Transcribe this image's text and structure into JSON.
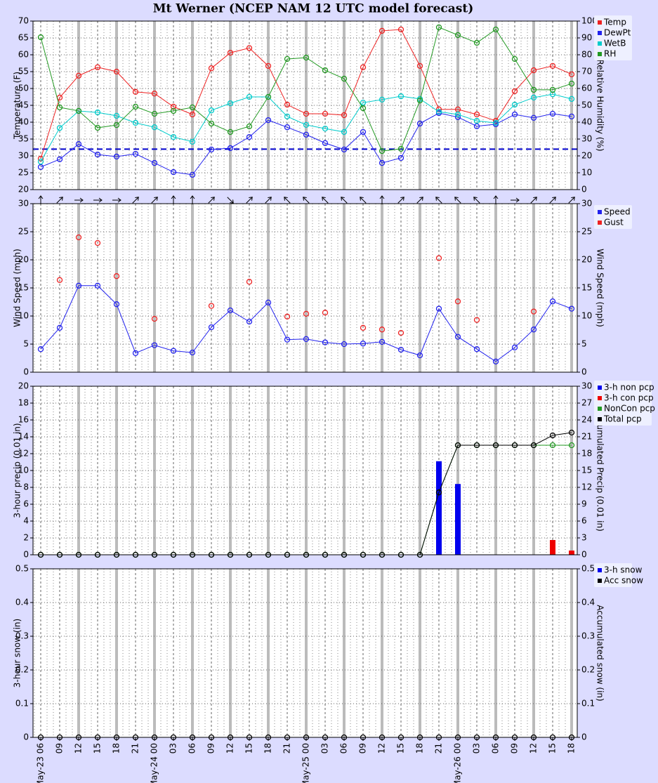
{
  "title": "Mt Werner (NCEP NAM 12 UTC model forecast)",
  "chart_data": [
    {
      "type": "combo",
      "ylabel": "Temperature (F)",
      "y2label": "Relative Humidity (%)",
      "ylim": [
        20,
        70
      ],
      "yticks": [
        20,
        25,
        30,
        35,
        40,
        45,
        50,
        55,
        60,
        65,
        70
      ],
      "y2lim": [
        0,
        100
      ],
      "y2ticks": [
        0,
        10,
        20,
        30,
        40,
        50,
        60,
        70,
        80,
        90,
        100
      ],
      "grid": true,
      "freezing_line": 32,
      "freezing_color": "#0000cc",
      "series": [
        {
          "name": "Temp",
          "color": "#ee2222",
          "kind": "line",
          "values": [
            29.2,
            47.3,
            53.8,
            56.3,
            55,
            49,
            48.5,
            44.6,
            42.3,
            56,
            60.6,
            62,
            56.7,
            45.2,
            42.5,
            42.5,
            42.1,
            56.3,
            67.1,
            67.5,
            56.7,
            43.8,
            43.8,
            42.3,
            40.4,
            49.2,
            55.4,
            56.7,
            54.2
          ]
        },
        {
          "name": "DewPt",
          "color": "#2222ee",
          "kind": "line",
          "values": [
            26.7,
            29,
            33.5,
            30.4,
            29.8,
            30.6,
            27.9,
            25.2,
            24.4,
            31.9,
            32.3,
            35.6,
            40.6,
            38.5,
            36.3,
            33.8,
            31.9,
            37.1,
            27.9,
            29.4,
            39.6,
            42.7,
            41.5,
            38.8,
            39.4,
            42.3,
            41.3,
            42.5,
            41.7
          ]
        },
        {
          "name": "WetB",
          "color": "#00cccc",
          "kind": "line",
          "values": [
            28.3,
            38.3,
            43.3,
            42.9,
            41.9,
            39.8,
            38.5,
            35.6,
            34.2,
            43.5,
            45.6,
            47.5,
            47.5,
            41.7,
            39.2,
            38.1,
            37.1,
            45.8,
            46.7,
            47.7,
            46.9,
            43.1,
            42.3,
            40.4,
            39.8,
            45.2,
            47.3,
            48.3,
            46.9
          ]
        },
        {
          "name": "RH",
          "color": "#229922",
          "kind": "line",
          "axis": "y2",
          "values": [
            90.4,
            48.8,
            46.7,
            36.7,
            38.3,
            49.2,
            45,
            46.7,
            48.8,
            39.2,
            34.2,
            37.5,
            55,
            77.5,
            78.3,
            70.8,
            65.8,
            48.3,
            22.9,
            24.2,
            52.9,
            96.3,
            91.7,
            87.1,
            95,
            77.5,
            59.2,
            59.2,
            62.9
          ]
        }
      ]
    },
    {
      "type": "combo",
      "ylabel": "Wind Speed (mph)",
      "y2label": "Wind Speed (mph)",
      "ylim": [
        0,
        30
      ],
      "yticks": [
        0,
        5,
        10,
        15,
        20,
        25,
        30
      ],
      "y2lim": [
        0,
        30
      ],
      "y2ticks": [
        0,
        5,
        10,
        15,
        20,
        25,
        30
      ],
      "grid": true,
      "wind_direction": [
        180,
        225,
        270,
        270,
        270,
        225,
        225,
        180,
        180,
        225,
        315,
        225,
        225,
        135,
        135,
        135,
        135,
        135,
        180,
        225,
        225,
        135,
        135,
        135,
        180,
        270,
        225,
        225,
        225
      ],
      "series": [
        {
          "name": "Speed",
          "color": "#2222ee",
          "kind": "line",
          "values": [
            4.1,
            7.9,
            15.4,
            15.4,
            12.1,
            3.4,
            4.8,
            3.8,
            3.5,
            8,
            11,
            9,
            12.4,
            5.8,
            5.9,
            5.3,
            5,
            5.1,
            5.4,
            4,
            3,
            11.3,
            6.3,
            4.1,
            1.9,
            4.4,
            7.6,
            12.6,
            11.3
          ]
        },
        {
          "name": "Gust",
          "color": "#ee2222",
          "kind": "points",
          "values": [
            null,
            16.4,
            24,
            23,
            17.1,
            null,
            9.5,
            null,
            null,
            11.8,
            null,
            16.1,
            null,
            9.9,
            10.4,
            10.6,
            null,
            7.9,
            7.6,
            7,
            null,
            20.3,
            12.6,
            9.3,
            null,
            null,
            10.8,
            null,
            null
          ]
        }
      ]
    },
    {
      "type": "combo",
      "ylabel": "3-hour precip (0.01 in)",
      "y2label": "Accumulated Precip (0.01 in)",
      "ylim": [
        0,
        20
      ],
      "yticks": [
        0,
        2,
        4,
        6,
        8,
        10,
        12,
        14,
        16,
        18,
        20
      ],
      "y2lim": [
        0,
        30
      ],
      "y2ticks": [
        0,
        3,
        6,
        9,
        12,
        15,
        18,
        21,
        24,
        27,
        30
      ],
      "grid": true,
      "series": [
        {
          "name": "3-h non pcp",
          "color": "#0000ee",
          "kind": "bar",
          "values": [
            0,
            0,
            0,
            0,
            0,
            0,
            0,
            0,
            0,
            0,
            0,
            0,
            0,
            0,
            0,
            0,
            0,
            0,
            0,
            0,
            0,
            11.1,
            8.4,
            0,
            0,
            0,
            0,
            0,
            0
          ]
        },
        {
          "name": "3-h con pcp",
          "color": "#ee0000",
          "kind": "bar",
          "values": [
            0,
            0,
            0,
            0,
            0,
            0,
            0,
            0,
            0,
            0,
            0,
            0,
            0,
            0,
            0,
            0,
            0,
            0,
            0,
            0,
            0,
            0,
            0,
            0,
            0,
            0,
            0,
            1.75,
            0.5
          ]
        },
        {
          "name": "NonCon pcp",
          "color": "#229922",
          "kind": "line",
          "axis": "y2",
          "values": [
            0,
            0,
            0,
            0,
            0,
            0,
            0,
            0,
            0,
            0,
            0,
            0,
            0,
            0,
            0,
            0,
            0,
            0,
            0,
            0,
            0,
            11.1,
            19.5,
            19.5,
            19.5,
            19.5,
            19.5,
            19.5,
            19.5
          ]
        },
        {
          "name": "Total pcp",
          "color": "#000000",
          "kind": "line",
          "axis": "y2",
          "values": [
            0,
            0,
            0,
            0,
            0,
            0,
            0,
            0,
            0,
            0,
            0,
            0,
            0,
            0,
            0,
            0,
            0,
            0,
            0,
            0,
            0,
            11.1,
            19.5,
            19.5,
            19.5,
            19.5,
            19.5,
            21.25,
            21.75
          ]
        }
      ]
    },
    {
      "type": "combo",
      "ylabel": "3-hour snow (in)",
      "y2label": "Accumulated snow (in)",
      "ylim": [
        0,
        0.5
      ],
      "yticks": [
        0,
        0.1,
        0.2,
        0.3,
        0.4,
        0.5
      ],
      "y2lim": [
        0,
        0.5
      ],
      "y2ticks": [
        0,
        0.1,
        0.2,
        0.3,
        0.4,
        0.5
      ],
      "grid": true,
      "categories": [
        "May-23 06",
        "09",
        "12",
        "15",
        "18",
        "21",
        "May-24 00",
        "03",
        "06",
        "09",
        "12",
        "15",
        "18",
        "21",
        "May-25 00",
        "03",
        "06",
        "09",
        "12",
        "15",
        "18",
        "21",
        "May-26 00",
        "03",
        "06",
        "09",
        "12",
        "15",
        "18"
      ],
      "series": [
        {
          "name": "3-h snow",
          "color": "#0000ee",
          "kind": "bar",
          "values": [
            0,
            0,
            0,
            0,
            0,
            0,
            0,
            0,
            0,
            0,
            0,
            0,
            0,
            0,
            0,
            0,
            0,
            0,
            0,
            0,
            0,
            0,
            0,
            0,
            0,
            0,
            0,
            0,
            0
          ]
        },
        {
          "name": "Acc snow",
          "color": "#000000",
          "kind": "noline",
          "axis": "y2",
          "values": [
            0,
            0,
            0,
            0,
            0,
            0,
            0,
            0,
            0,
            0,
            0,
            0,
            0,
            0,
            0,
            0,
            0,
            0,
            0,
            0,
            0,
            0,
            0,
            0,
            0,
            0,
            0,
            0,
            0
          ]
        }
      ]
    }
  ]
}
